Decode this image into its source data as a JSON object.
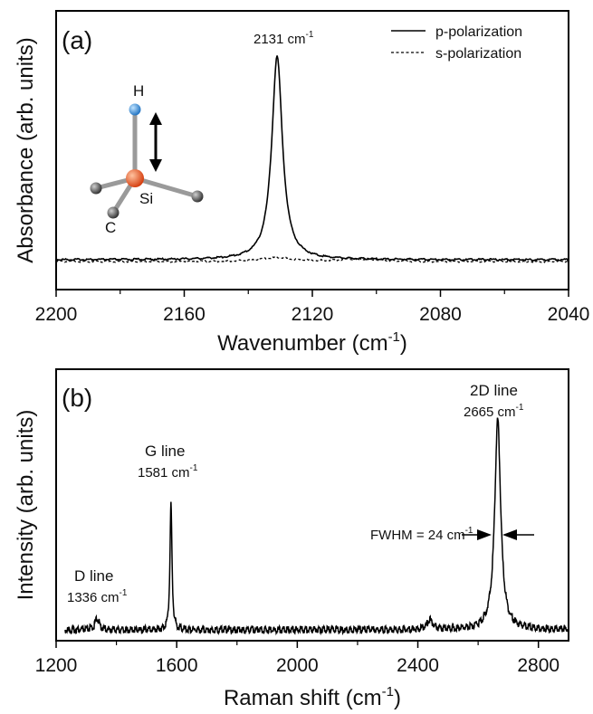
{
  "chart_data": [
    {
      "type": "line",
      "panel_label": "(a)",
      "xlabel": "Wavenumber (cm",
      "xlabel_sup": "-1",
      "xlabel_close": ")",
      "ylabel": "Absorbance (arb. units)",
      "xlim": [
        2200,
        2040
      ],
      "x_reversed": true,
      "ticks": [
        2200,
        2160,
        2120,
        2080,
        2040
      ],
      "tick_labels": [
        "2200",
        "2160",
        "2120",
        "2080",
        "2040"
      ],
      "grid": false,
      "legend_position": "top-right",
      "series": [
        {
          "name": "p-polarization",
          "style": "solid",
          "baseline": 0.0,
          "peak_center": 2131,
          "peak_height": 1.0,
          "peak_hwhm": 2.0
        },
        {
          "name": "s-polarization",
          "style": "dashed",
          "baseline": 0.0,
          "peak_center": 2131,
          "peak_height": 0.02,
          "peak_hwhm": 6.0
        }
      ],
      "peak_annotation": {
        "text": "2131 cm",
        "sup": "-1",
        "x": 2131
      },
      "molecule": {
        "atoms": [
          "H",
          "Si",
          "C"
        ],
        "arrow": "double-vertical"
      }
    },
    {
      "type": "line",
      "panel_label": "(b)",
      "xlabel": "Raman shift (cm",
      "xlabel_sup": "-1",
      "xlabel_close": ")",
      "ylabel": "Intensity (arb. units)",
      "xlim": [
        1200,
        2900
      ],
      "ticks": [
        1200,
        1600,
        2000,
        2400,
        2800
      ],
      "tick_labels": [
        "1200",
        "1600",
        "2000",
        "2400",
        "2800"
      ],
      "grid": false,
      "peaks": [
        {
          "label": "D line",
          "position_text": "1336 cm",
          "sup": "-1",
          "x": 1336,
          "height": 0.055,
          "hwhm": 8
        },
        {
          "label": "G line",
          "position_text": "1581 cm",
          "sup": "-1",
          "x": 1581,
          "height": 0.6,
          "hwhm": 4
        },
        {
          "label": "",
          "position_text": "",
          "sup": "",
          "x": 2440,
          "height": 0.045,
          "hwhm": 12
        },
        {
          "label": "2D line",
          "position_text": "2665 cm",
          "sup": "-1",
          "x": 2665,
          "height": 1.0,
          "hwhm": 12
        }
      ],
      "fwhm_annotation": {
        "text": "FWHM = 24 cm",
        "sup": "-1"
      }
    }
  ]
}
